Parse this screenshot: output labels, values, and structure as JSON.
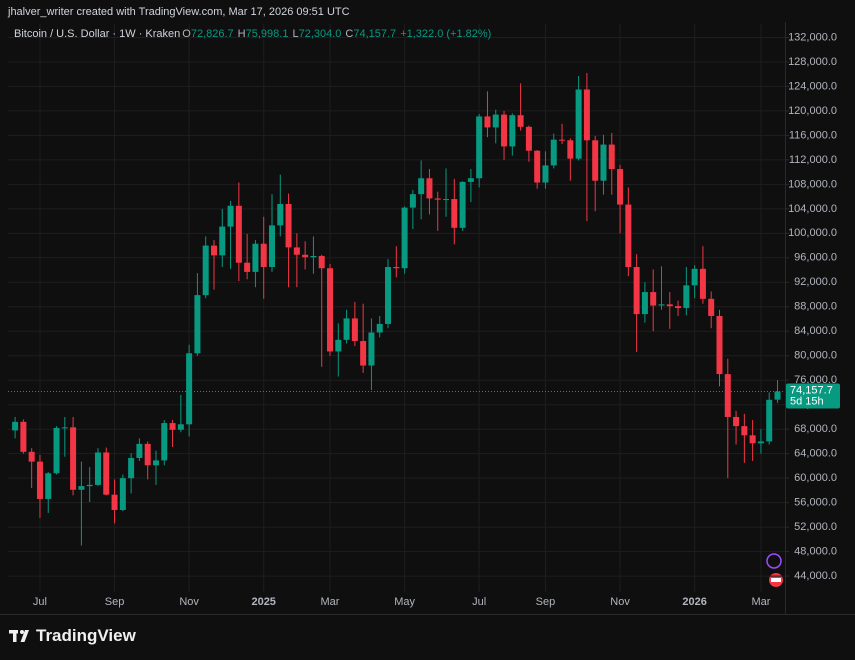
{
  "header": "jhalver_writer created with TradingView.com, Mar 17, 2026 09:51 UTC",
  "chart_data": {
    "type": "candlestick",
    "title": "Bitcoin / U.S. Dollar · 1W · Kraken",
    "ohlc_legend": [
      {
        "key": "O",
        "value": "72,826.7"
      },
      {
        "key": "H",
        "value": "75,998.1"
      },
      {
        "key": "L",
        "value": "72,304.0"
      },
      {
        "key": "C",
        "value": "74,157.7"
      }
    ],
    "change": "+1,322.0 (+1.82%)",
    "categories": [
      null,
      null,
      null,
      "Jul",
      null,
      null,
      null,
      null,
      null,
      null,
      null,
      null,
      "Sep",
      null,
      null,
      null,
      null,
      null,
      null,
      null,
      null,
      "Nov",
      null,
      null,
      null,
      null,
      null,
      null,
      null,
      null,
      "2025",
      null,
      null,
      null,
      null,
      null,
      null,
      null,
      "Mar",
      null,
      null,
      null,
      null,
      null,
      null,
      null,
      null,
      "May",
      null,
      null,
      null,
      null,
      null,
      null,
      null,
      null,
      "Jul",
      null,
      null,
      null,
      null,
      null,
      null,
      null,
      "Sep",
      null,
      null,
      null,
      null,
      null,
      null,
      null,
      null,
      "Nov",
      null,
      null,
      null,
      null,
      null,
      null,
      null,
      null,
      "2026",
      null,
      null,
      null,
      null,
      null,
      null,
      null,
      "Mar",
      null,
      null
    ],
    "open": [
      67800,
      69200,
      64300,
      62700,
      56600,
      60800,
      68200,
      68300,
      58100,
      58700,
      58900,
      64200,
      57300,
      54800,
      60000,
      63300,
      65600,
      62100,
      62900,
      69000,
      67900,
      68800,
      80400,
      89900,
      98000,
      96400,
      101100,
      104500,
      95200,
      93700,
      98300,
      94500,
      101300,
      104800,
      97700,
      96500,
      96100,
      96300,
      94300,
      80700,
      82600,
      86100,
      82400,
      78400,
      83800,
      85200,
      94500,
      94300,
      104200,
      106400,
      109000,
      105700,
      105500,
      105600,
      100900,
      108400,
      109000,
      119100,
      117300,
      119400,
      114200,
      119300,
      117400,
      113500,
      108300,
      111100,
      115300,
      115200,
      112200,
      123500,
      115200,
      108600,
      114500,
      110500,
      104700,
      94500,
      86800,
      90400,
      88200,
      88400,
      88100,
      87800,
      91500,
      94200,
      89300,
      86500,
      77000,
      70000,
      68500,
      67000,
      65700,
      66000,
      72826.7
    ],
    "high": [
      70000,
      69600,
      64900,
      63800,
      61000,
      68500,
      70000,
      70000,
      62700,
      61800,
      64900,
      65000,
      59800,
      60600,
      64100,
      66500,
      66000,
      64500,
      69500,
      69500,
      73600,
      81800,
      93500,
      99500,
      98900,
      104000,
      105300,
      108300,
      99900,
      98900,
      102700,
      106400,
      109600,
      106500,
      100000,
      98700,
      99500,
      96500,
      95000,
      85300,
      87500,
      88800,
      88500,
      86100,
      86500,
      95800,
      97900,
      104400,
      107100,
      111900,
      110500,
      106800,
      110600,
      108900,
      108500,
      110500,
      119500,
      123200,
      120200,
      120000,
      119600,
      124500,
      117600,
      113600,
      113400,
      116300,
      117900,
      115500,
      125700,
      126200,
      115900,
      116100,
      116400,
      111200,
      107500,
      96600,
      92000,
      94100,
      94600,
      90400,
      89000,
      94500,
      94800,
      97900,
      90500,
      87500,
      79500,
      71000,
      70500,
      69500,
      68000,
      74000,
      75998.1
    ],
    "low": [
      66500,
      64000,
      58400,
      53500,
      54300,
      60600,
      63500,
      57200,
      49000,
      56100,
      58700,
      57200,
      52600,
      54600,
      57500,
      62800,
      59800,
      58900,
      62100,
      65100,
      67500,
      66800,
      80000,
      89400,
      90800,
      94500,
      94200,
      92200,
      92500,
      91200,
      89300,
      93700,
      99500,
      91200,
      91200,
      94100,
      93400,
      78200,
      80000,
      76600,
      82000,
      81600,
      77200,
      74400,
      83000,
      84500,
      92800,
      93400,
      100700,
      102300,
      103100,
      100400,
      102700,
      98200,
      100400,
      105100,
      107500,
      115700,
      114700,
      112000,
      112700,
      116800,
      111700,
      107300,
      107300,
      110600,
      114600,
      108600,
      111900,
      102000,
      103600,
      106300,
      106300,
      100000,
      93000,
      80600,
      85400,
      84000,
      87500,
      84400,
      86500,
      86600,
      89400,
      88500,
      84500,
      75000,
      60000,
      65500,
      62500,
      62800,
      64000,
      65500,
      72304.0
    ],
    "close": [
      69200,
      64300,
      62700,
      56600,
      60800,
      68200,
      68300,
      58100,
      58700,
      58900,
      64200,
      57300,
      54800,
      60000,
      63300,
      65600,
      62100,
      62900,
      69000,
      67900,
      68800,
      80400,
      89900,
      98000,
      96400,
      101100,
      104500,
      95200,
      93700,
      98300,
      94500,
      101300,
      104800,
      97700,
      96500,
      96100,
      96300,
      94300,
      80700,
      82600,
      86100,
      82400,
      78400,
      83800,
      85200,
      94500,
      94300,
      104200,
      106400,
      109000,
      105700,
      105500,
      105600,
      100900,
      108400,
      109000,
      119100,
      117300,
      119400,
      114200,
      119300,
      117400,
      113500,
      108300,
      111100,
      115300,
      115200,
      112200,
      123500,
      115200,
      108600,
      114500,
      110500,
      104700,
      94500,
      86800,
      90400,
      88200,
      88400,
      88100,
      87800,
      91500,
      94200,
      89300,
      86500,
      77000,
      70000,
      68500,
      67000,
      65700,
      66000,
      72800,
      74157.7
    ],
    "up_color": "#089981",
    "down_color": "#f23645",
    "ylim": [
      41400,
      134200
    ],
    "yticks": [
      {
        "value": 44000,
        "label": "44,000.0"
      },
      {
        "value": 48000,
        "label": "48,000.0"
      },
      {
        "value": 52000,
        "label": "52,000.0"
      },
      {
        "value": 56000,
        "label": "56,000.0"
      },
      {
        "value": 60000,
        "label": "60,000.0"
      },
      {
        "value": 64000,
        "label": "64,000.0"
      },
      {
        "value": 68000,
        "label": "68,000.0"
      },
      {
        "value": 72000,
        "label": "72,000.0"
      },
      {
        "value": 76000,
        "label": "76,000.0"
      },
      {
        "value": 80000,
        "label": "80,000.0"
      },
      {
        "value": 84000,
        "label": "84,000.0"
      },
      {
        "value": 88000,
        "label": "88,000.0"
      },
      {
        "value": 92000,
        "label": "92,000.0"
      },
      {
        "value": 96000,
        "label": "96,000.0"
      },
      {
        "value": 100000,
        "label": "100,000.0"
      },
      {
        "value": 104000,
        "label": "104,000.0"
      },
      {
        "value": 108000,
        "label": "108,000.0"
      },
      {
        "value": 112000,
        "label": "112,000.0"
      },
      {
        "value": 116000,
        "label": "116,000.0"
      },
      {
        "value": 120000,
        "label": "120,000.0"
      },
      {
        "value": 124000,
        "label": "124,000.0"
      },
      {
        "value": 128000,
        "label": "128,000.0"
      },
      {
        "value": 132000,
        "label": "132,000.0"
      }
    ],
    "grid": true,
    "price_line": {
      "value": 74157.7,
      "label": "74,157.7",
      "countdown": "5d 15h"
    }
  },
  "footer": {
    "brand": "TradingView"
  }
}
